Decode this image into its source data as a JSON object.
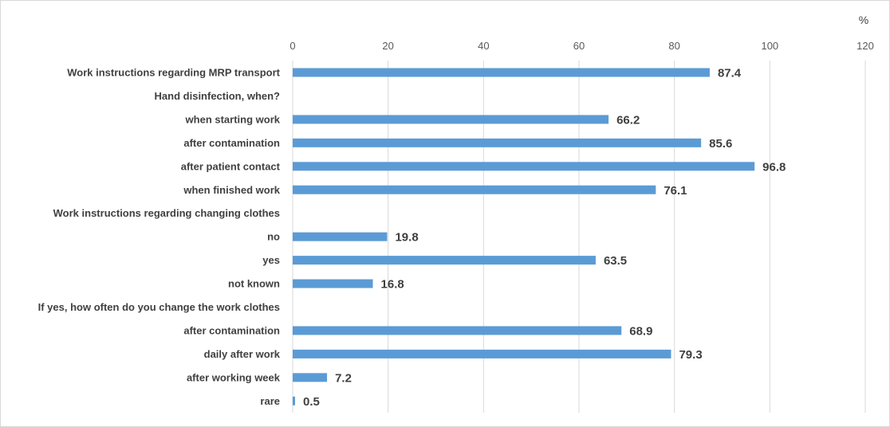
{
  "chart_data": {
    "type": "bar",
    "orientation": "horizontal",
    "axis_unit": "%",
    "xlim": [
      0,
      120
    ],
    "x_ticks": [
      0,
      20,
      40,
      60,
      80,
      100,
      120
    ],
    "grid": true,
    "bar_color": "#5b9bd5",
    "categories": [
      "Work instructions regarding MRP transport",
      "Hand disinfection, when?",
      "when starting work",
      "after contamination",
      "after patient contact",
      "when finished work",
      "Work instructions regarding changing clothes",
      "no",
      "yes",
      "not known",
      "If yes, how often do you change the work clothes",
      "after contamination",
      "daily after work",
      "after working week",
      "rare"
    ],
    "values": [
      87.4,
      null,
      66.2,
      85.6,
      96.8,
      76.1,
      null,
      19.8,
      63.5,
      16.8,
      null,
      68.9,
      79.3,
      7.2,
      0.5
    ],
    "value_labels": [
      "87.4",
      "",
      "66.2",
      "85.6",
      "96.8",
      "76.1",
      "",
      "19.8",
      "63.5",
      "16.8",
      "",
      "68.9",
      "79.3",
      "7.2",
      "0.5"
    ]
  }
}
